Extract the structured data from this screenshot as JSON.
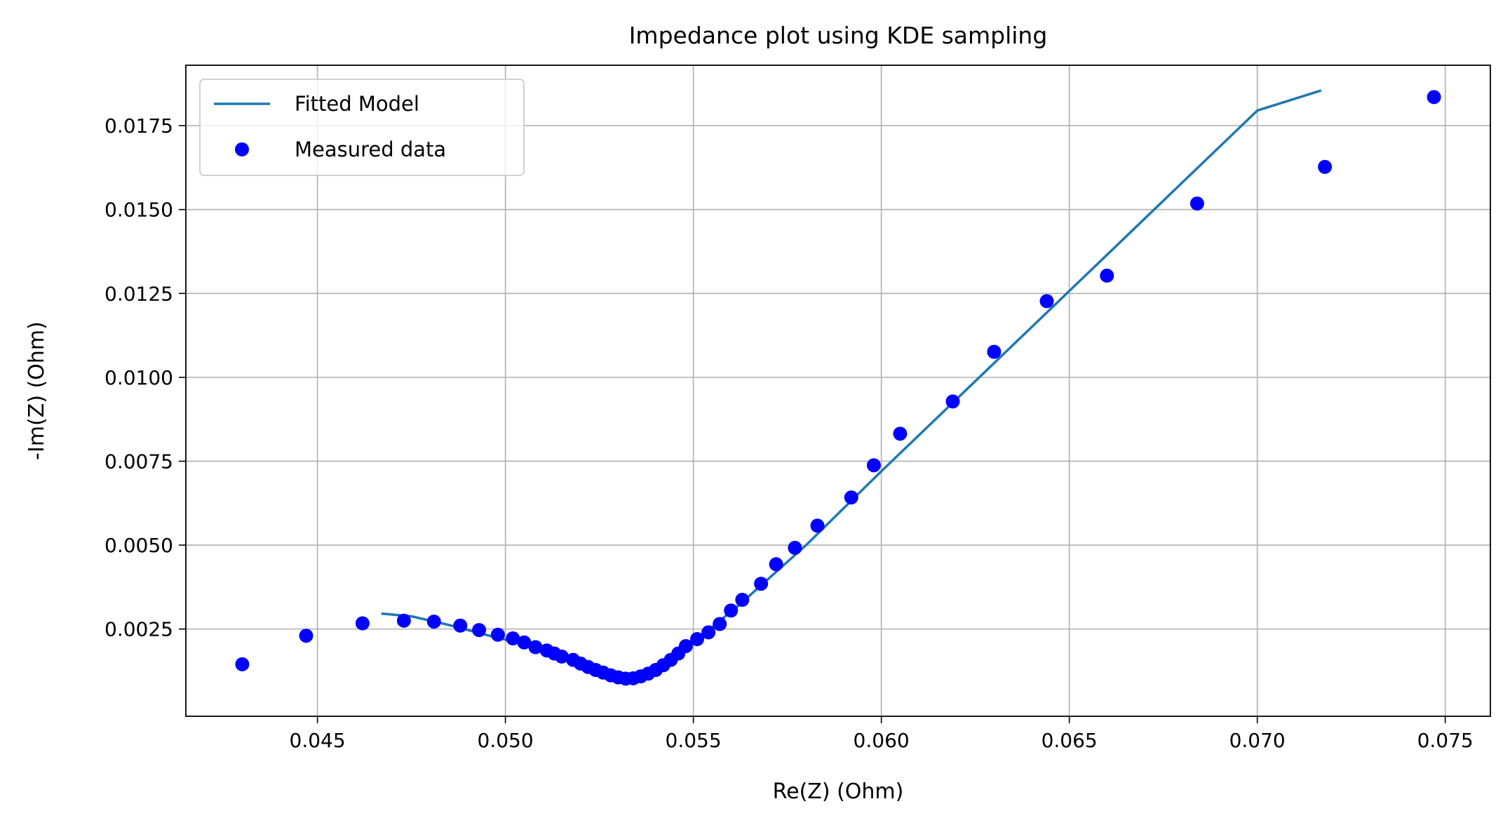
{
  "chart_data": {
    "type": "line+scatter",
    "title": "Impedance plot using KDE sampling",
    "xlabel": "Re(Z) (Ohm)",
    "ylabel": "-Im(Z) (Ohm)",
    "xlim": [
      0.0415,
      0.0762
    ],
    "ylim": [
      -0.0001,
      0.0193
    ],
    "xticks": [
      0.045,
      0.05,
      0.055,
      0.06,
      0.065,
      0.07,
      0.075
    ],
    "xtick_labels": [
      "0.045",
      "0.050",
      "0.055",
      "0.060",
      "0.065",
      "0.070",
      "0.075"
    ],
    "yticks": [
      0.0025,
      0.005,
      0.0075,
      0.01,
      0.0125,
      0.015,
      0.0175
    ],
    "ytick_labels": [
      "0.0025",
      "0.0050",
      "0.0075",
      "0.0100",
      "0.0125",
      "0.0150",
      "0.0175"
    ],
    "grid": true,
    "legend_position": "top-left",
    "series": [
      {
        "name": "Fitted Model",
        "kind": "line",
        "color": "#1f77b4",
        "points": [
          [
            0.0467,
            0.00296
          ],
          [
            0.0475,
            0.00288
          ],
          [
            0.0485,
            0.00262
          ],
          [
            0.0495,
            0.00232
          ],
          [
            0.0505,
            0.00205
          ],
          [
            0.0512,
            0.0018
          ],
          [
            0.052,
            0.00148
          ],
          [
            0.0527,
            0.00118
          ],
          [
            0.0531,
            0.00106
          ],
          [
            0.0534,
            0.00105
          ],
          [
            0.0538,
            0.00115
          ],
          [
            0.0542,
            0.0014
          ],
          [
            0.0546,
            0.00175
          ],
          [
            0.055,
            0.0021
          ],
          [
            0.0556,
            0.00265
          ],
          [
            0.0562,
            0.0032
          ],
          [
            0.057,
            0.004
          ],
          [
            0.058,
            0.005
          ],
          [
            0.06,
            0.0072
          ],
          [
            0.062,
            0.00935
          ],
          [
            0.064,
            0.0115
          ],
          [
            0.066,
            0.01365
          ],
          [
            0.068,
            0.0158
          ],
          [
            0.07,
            0.01795
          ],
          [
            0.0717,
            0.01855
          ]
        ]
      },
      {
        "name": "Measured data",
        "kind": "scatter",
        "color": "#0000ff",
        "points": [
          [
            0.043,
            0.00145
          ],
          [
            0.0447,
            0.0023
          ],
          [
            0.0462,
            0.00267
          ],
          [
            0.0473,
            0.00275
          ],
          [
            0.0481,
            0.00272
          ],
          [
            0.0488,
            0.0026
          ],
          [
            0.0493,
            0.00247
          ],
          [
            0.0498,
            0.00233
          ],
          [
            0.0502,
            0.00222
          ],
          [
            0.0505,
            0.0021
          ],
          [
            0.0508,
            0.00196
          ],
          [
            0.0511,
            0.00186
          ],
          [
            0.0513,
            0.00177
          ],
          [
            0.0515,
            0.00168
          ],
          [
            0.0518,
            0.00158
          ],
          [
            0.052,
            0.00147
          ],
          [
            0.0522,
            0.00137
          ],
          [
            0.0524,
            0.00128
          ],
          [
            0.0526,
            0.0012
          ],
          [
            0.0528,
            0.00112
          ],
          [
            0.053,
            0.00106
          ],
          [
            0.0532,
            0.00102
          ],
          [
            0.0534,
            0.00103
          ],
          [
            0.0536,
            0.00109
          ],
          [
            0.0538,
            0.00117
          ],
          [
            0.054,
            0.00128
          ],
          [
            0.0542,
            0.00142
          ],
          [
            0.0544,
            0.00158
          ],
          [
            0.0546,
            0.00177
          ],
          [
            0.0548,
            0.00199
          ],
          [
            0.0551,
            0.0022
          ],
          [
            0.0554,
            0.0024
          ],
          [
            0.0557,
            0.00265
          ],
          [
            0.056,
            0.00305
          ],
          [
            0.0563,
            0.00337
          ],
          [
            0.0568,
            0.00385
          ],
          [
            0.0572,
            0.00443
          ],
          [
            0.0577,
            0.00492
          ],
          [
            0.0583,
            0.00558
          ],
          [
            0.0592,
            0.00642
          ],
          [
            0.0598,
            0.00738
          ],
          [
            0.0605,
            0.00832
          ],
          [
            0.0619,
            0.00928
          ],
          [
            0.063,
            0.01076
          ],
          [
            0.0644,
            0.01227
          ],
          [
            0.066,
            0.01303
          ],
          [
            0.0684,
            0.01518
          ],
          [
            0.0718,
            0.01627
          ],
          [
            0.0747,
            0.01835
          ]
        ]
      }
    ]
  }
}
